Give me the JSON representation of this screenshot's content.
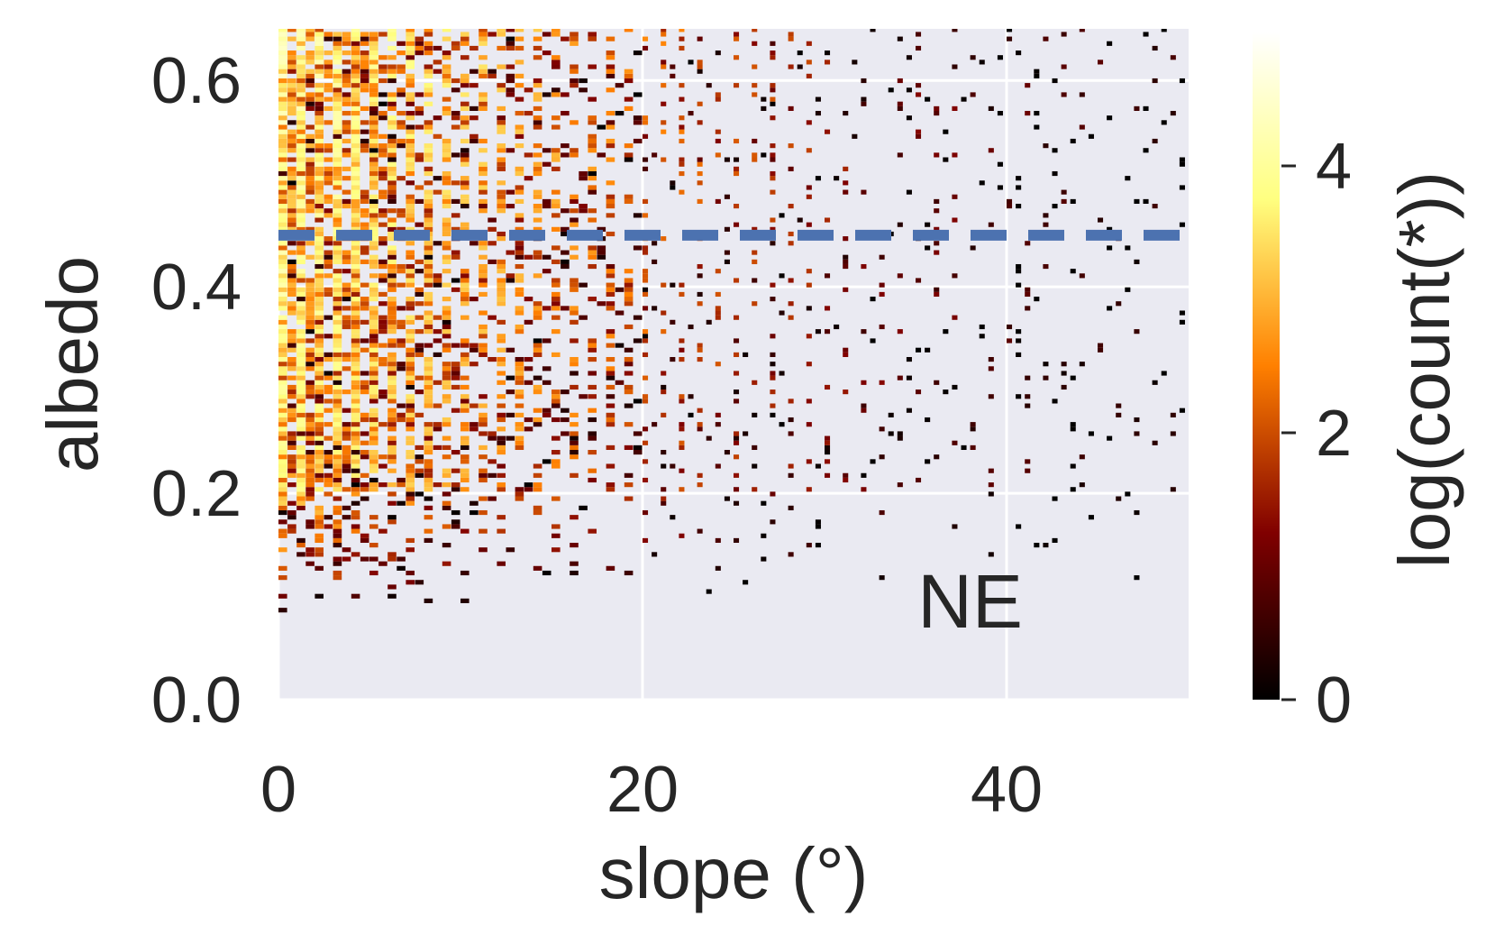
{
  "chart_data": {
    "type": "heatmap",
    "title": "",
    "xlabel": "slope (°)",
    "ylabel": "albedo",
    "xlim": [
      0,
      50
    ],
    "ylim": [
      0,
      0.65
    ],
    "xticks": [
      "0",
      "20",
      "40"
    ],
    "xtick_values": [
      0,
      20,
      40
    ],
    "yticks": [
      "0.0",
      "0.2",
      "0.4",
      "0.6"
    ],
    "ytick_values": [
      0.0,
      0.2,
      0.4,
      0.6
    ],
    "grid": true,
    "background": "#EAEAF2",
    "grid_color": "#FFFFFF",
    "colormap": "afmhot",
    "colorbar": {
      "label": "log(count(*))",
      "range": [
        0,
        5
      ],
      "ticks": [
        "0",
        "2",
        "4"
      ],
      "tick_values": [
        0,
        2,
        4
      ]
    },
    "reference_line": {
      "orientation": "horizontal",
      "y": 0.45,
      "style": "dashed",
      "color": "#4C72B0"
    },
    "annotation": {
      "text": "NE",
      "x": 38,
      "y": 0.07
    },
    "density_description": {
      "dense_region": "slope 0–20°, albedo 0.2–0.65",
      "max_log_count_near": "slope ≈ 0–2°, albedo ≈ 0.6"
    }
  }
}
